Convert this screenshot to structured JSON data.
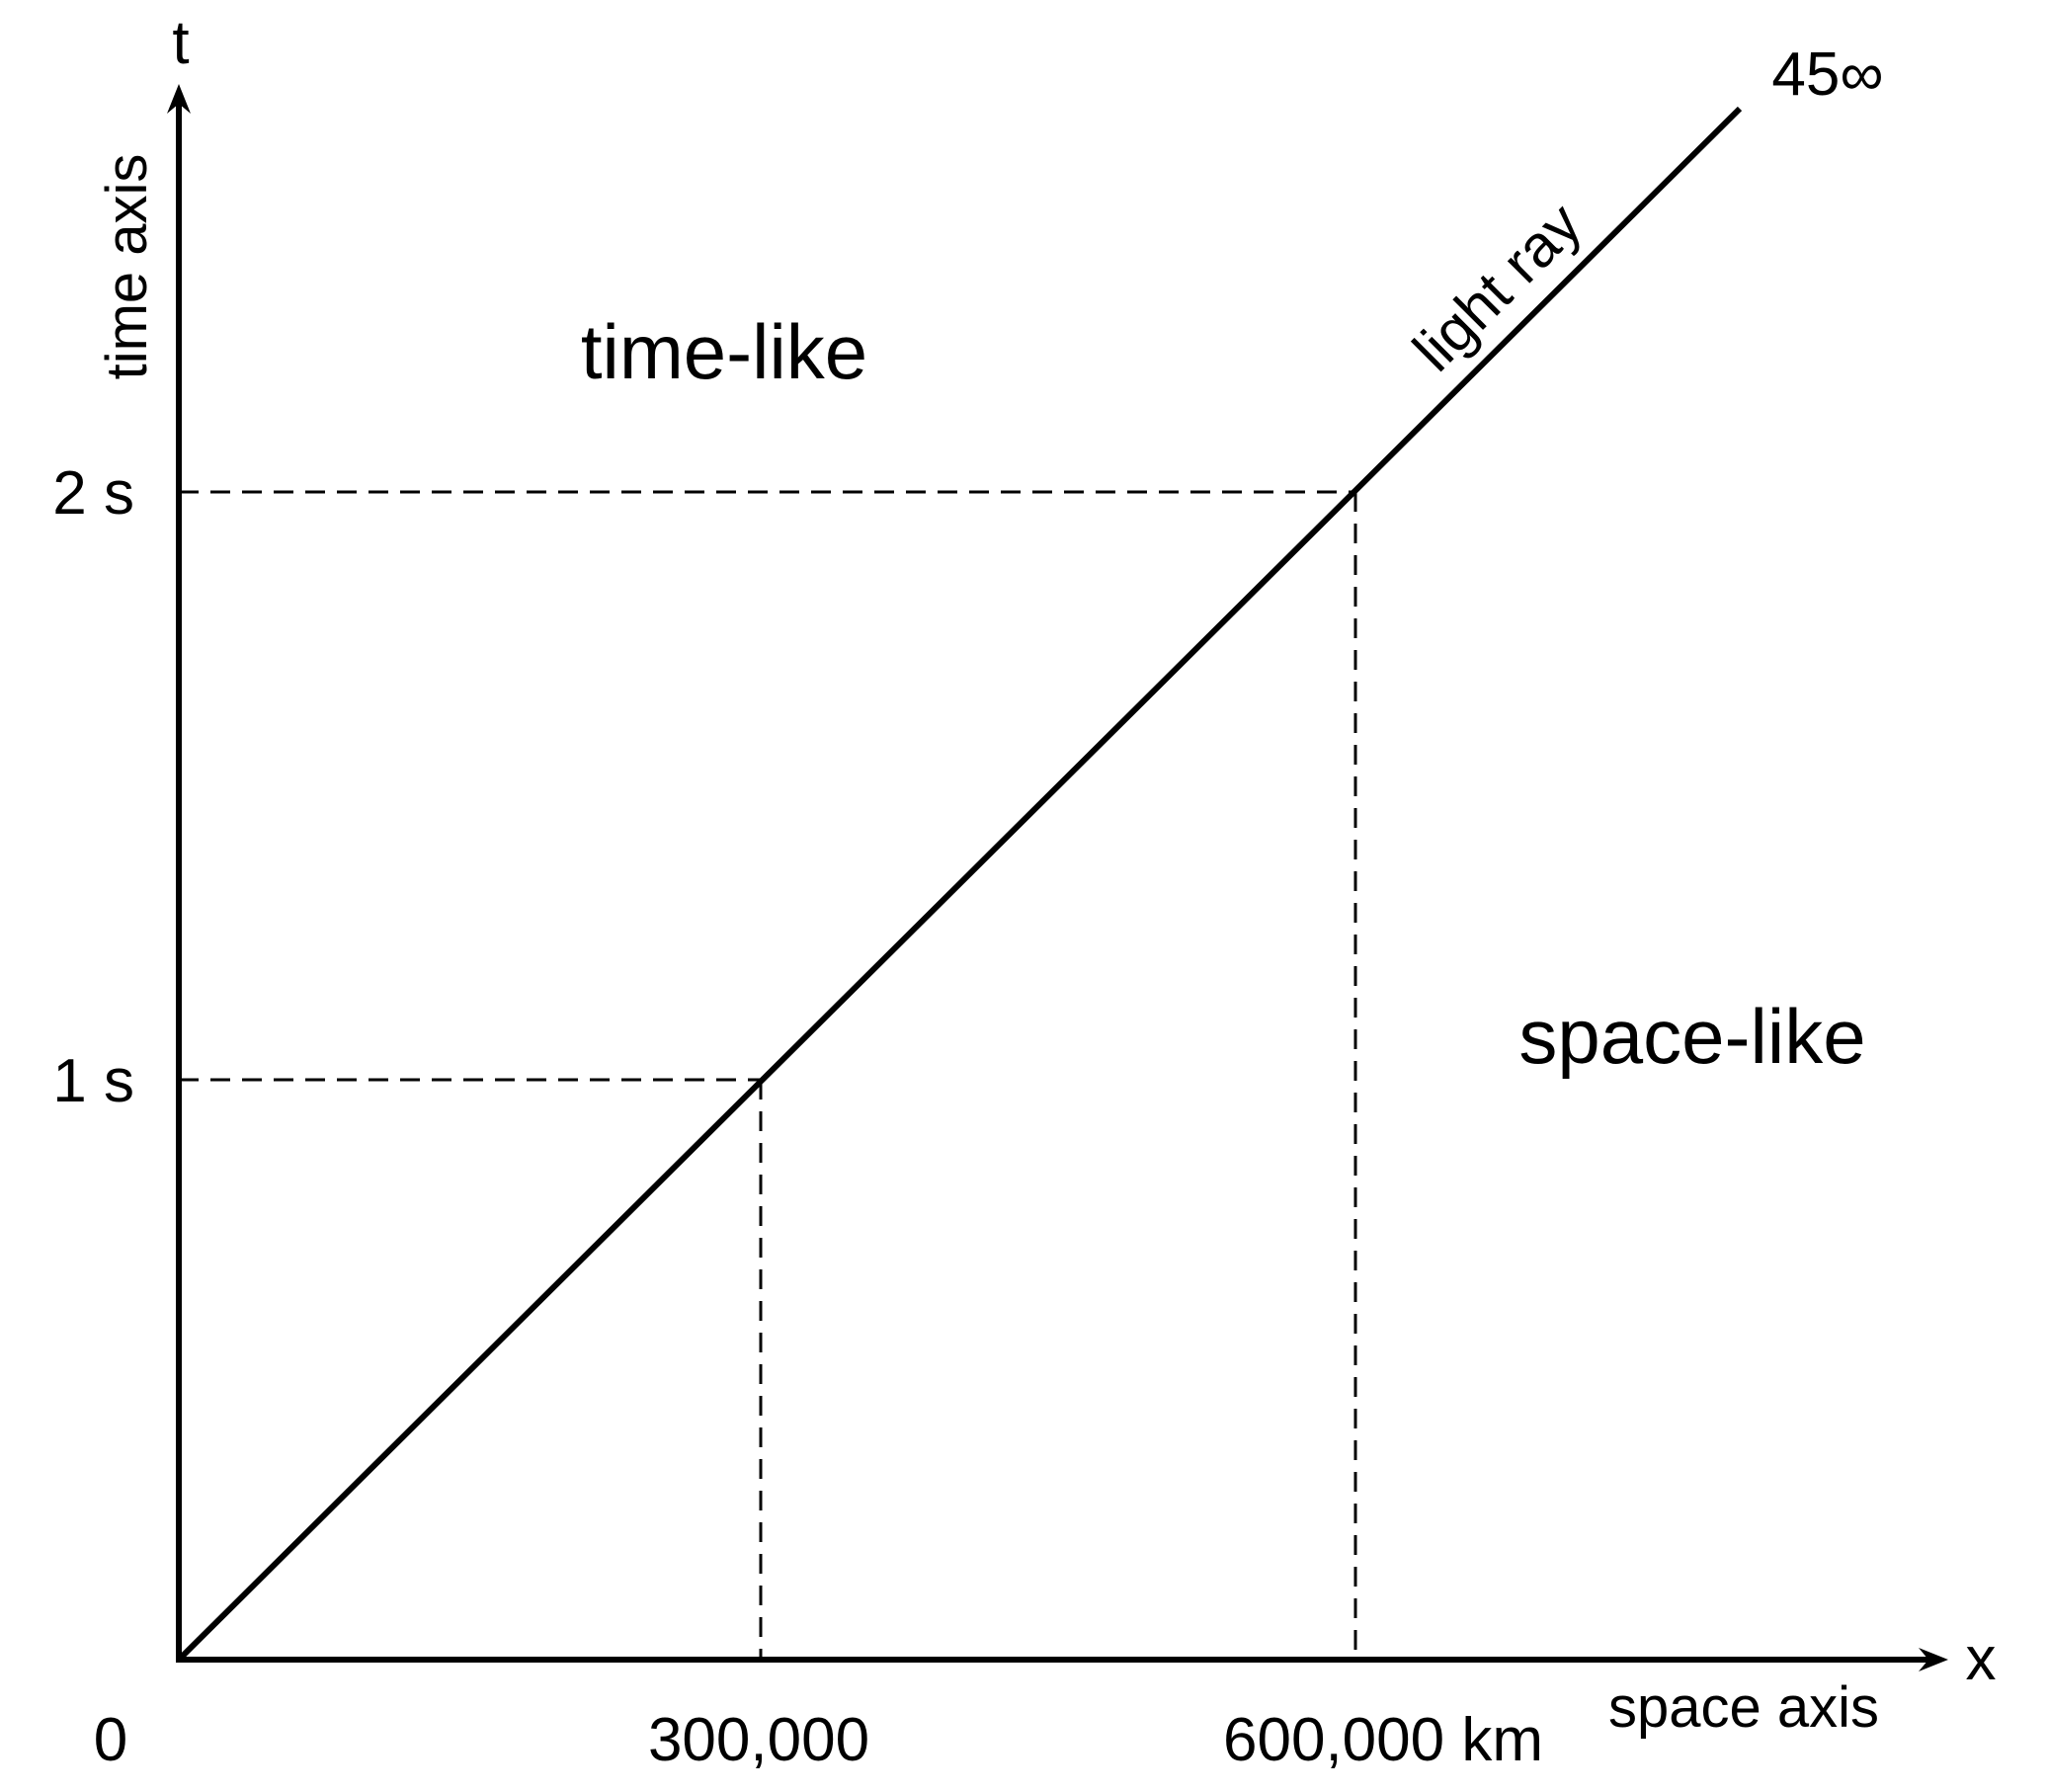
{
  "diagram": {
    "axis_t_letter": "t",
    "axis_t_label": "time axis",
    "axis_x_letter": "x",
    "axis_x_label": "space axis",
    "origin_label": "0",
    "tick_t_1": "1 s",
    "tick_t_2": "2 s",
    "tick_x_1": "300,000",
    "tick_x_2": "600,000 km",
    "region_timelike": "time-like",
    "region_spacelike": "space-like",
    "light_ray_label": "light ray",
    "angle_label": "45∞"
  },
  "colors": {
    "ink": "#000000",
    "background": "#ffffff"
  }
}
